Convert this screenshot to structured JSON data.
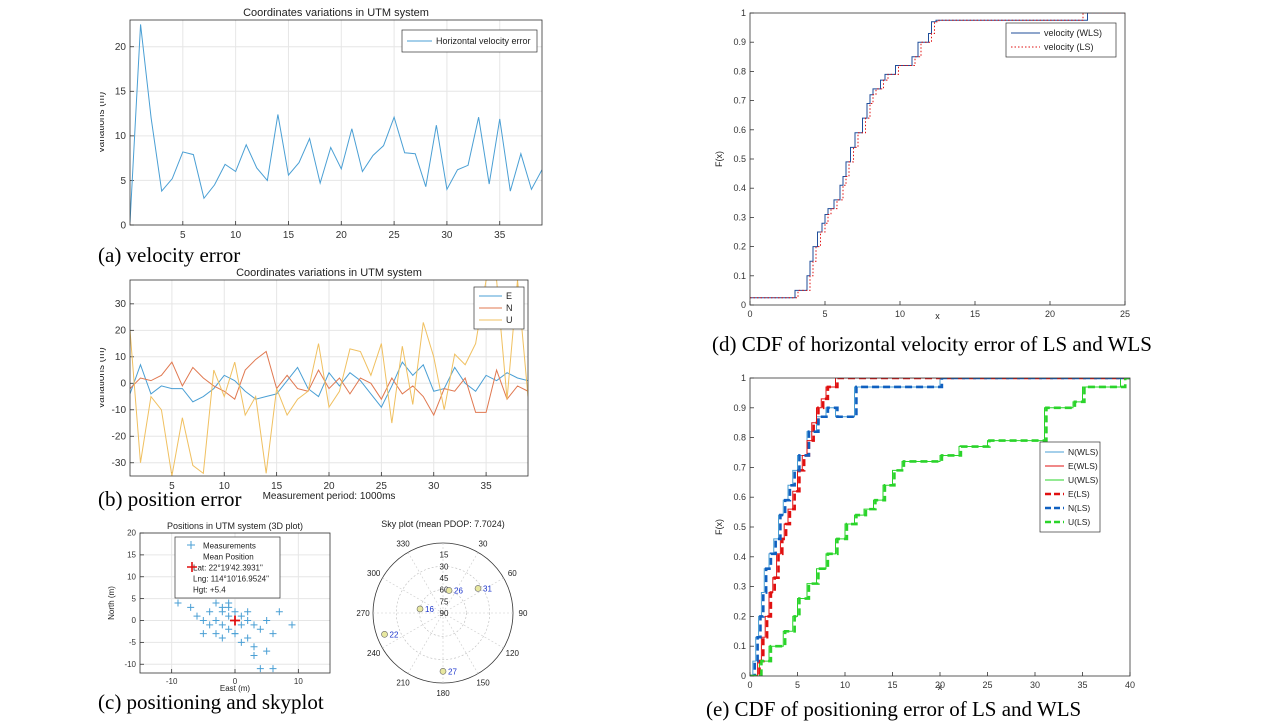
{
  "captions": {
    "a": "(a) velocity error",
    "b": "(b) position error",
    "c": "(c) positioning and skyplot",
    "d": "(d) CDF of  horizontal velocity error of LS and WLS",
    "e": "(e) CDF of positioning error of LS and WLS"
  },
  "chart_data": [
    {
      "id": "a",
      "type": "line",
      "title": "Coordinates variations in UTM system",
      "xlabel": "",
      "ylabel": "Variations (m)",
      "xlim": [
        0,
        39
      ],
      "ylim": [
        0,
        23
      ],
      "xticks": [
        5,
        10,
        15,
        20,
        25,
        30,
        35
      ],
      "yticks": [
        0,
        5,
        10,
        15,
        20
      ],
      "legend": "top-right",
      "series": [
        {
          "name": "Horizontal velocity error",
          "color": "#4a9fd4",
          "x": [
            0,
            1,
            2,
            3,
            4,
            5,
            6,
            7,
            8,
            9,
            10,
            11,
            12,
            13,
            14,
            15,
            16,
            17,
            18,
            19,
            20,
            21,
            22,
            23,
            24,
            25,
            26,
            27,
            28,
            29,
            30,
            31,
            32,
            33,
            34,
            35,
            36,
            37,
            38,
            39
          ],
          "values": [
            0.3,
            22.5,
            12,
            3.8,
            5.2,
            8.2,
            7.9,
            3.0,
            4.5,
            6.8,
            6.0,
            9.0,
            6.4,
            5.0,
            12.4,
            5.6,
            7.0,
            9.7,
            4.7,
            8.7,
            6.3,
            10.8,
            6.0,
            7.8,
            8.9,
            12.1,
            8.1,
            8.0,
            4.3,
            11.2,
            4.0,
            6.2,
            6.7,
            12.1,
            4.6,
            11.9,
            3.8,
            8.0,
            4.0,
            6.2
          ]
        }
      ]
    },
    {
      "id": "b",
      "type": "line",
      "title": "Coordinates variations in UTM system",
      "xlabel": "Measurement period: 1000ms",
      "ylabel": "Variations (m)",
      "xlim": [
        1,
        39
      ],
      "ylim": [
        -35,
        39
      ],
      "xticks": [
        5,
        10,
        15,
        20,
        25,
        30,
        35
      ],
      "yticks": [
        -30,
        -20,
        -10,
        0,
        10,
        20,
        30
      ],
      "legend": "top-right",
      "series": [
        {
          "name": "E",
          "color": "#4a9fd4",
          "x": [
            1,
            2,
            3,
            4,
            5,
            6,
            7,
            8,
            9,
            10,
            11,
            12,
            13,
            14,
            15,
            16,
            17,
            18,
            19,
            20,
            21,
            22,
            23,
            24,
            25,
            26,
            27,
            28,
            29,
            30,
            31,
            32,
            33,
            34,
            35,
            36,
            37,
            38,
            39
          ],
          "values": [
            -4,
            7,
            -4,
            -1,
            -2,
            -2,
            -7,
            -5,
            -2,
            3,
            1,
            -3,
            -6,
            -5,
            -4,
            1,
            6,
            -2,
            -5,
            4,
            -1,
            4,
            1,
            -4,
            -9,
            -1,
            8,
            3,
            7,
            -3,
            -2,
            6,
            0,
            -3,
            3,
            1,
            4,
            2,
            1
          ]
        },
        {
          "name": "N",
          "color": "#e07850",
          "x": [
            1,
            2,
            3,
            4,
            5,
            6,
            7,
            8,
            9,
            10,
            11,
            12,
            13,
            14,
            15,
            16,
            17,
            18,
            19,
            20,
            21,
            22,
            23,
            24,
            25,
            26,
            27,
            28,
            29,
            30,
            31,
            32,
            33,
            34,
            35,
            36,
            37,
            38,
            39
          ],
          "values": [
            -2,
            2,
            1,
            3,
            8,
            -1,
            6,
            2,
            -1,
            -3,
            -6,
            5,
            9,
            12,
            -2,
            3,
            -2,
            -3,
            5,
            -2,
            2,
            -4,
            2,
            0,
            -6,
            2,
            -4,
            -1,
            -5,
            -12,
            -2,
            -3,
            2,
            -11,
            -11,
            5,
            -6,
            -1,
            -3
          ]
        },
        {
          "name": "U",
          "color": "#f0c060",
          "x": [
            1,
            2,
            3,
            4,
            5,
            6,
            7,
            8,
            9,
            10,
            11,
            12,
            13,
            14,
            15,
            16,
            17,
            18,
            19,
            20,
            21,
            22,
            23,
            24,
            25,
            26,
            27,
            28,
            29,
            30,
            31,
            32,
            33,
            34,
            35,
            36,
            37,
            38,
            39
          ],
          "values": [
            20,
            -30,
            -5,
            -10,
            -35,
            -13,
            -31,
            -34,
            5,
            -5,
            8,
            -12,
            -5,
            -34,
            -2,
            -12,
            -6,
            -3,
            15,
            -9,
            -3,
            13,
            12,
            3,
            15,
            -15,
            14,
            -8,
            23,
            10,
            -10,
            11,
            7,
            15,
            39,
            39,
            -6,
            39,
            -5
          ]
        }
      ]
    },
    {
      "id": "c1",
      "type": "scatter",
      "title": "Positions in UTM system (3D plot)",
      "xlabel": "East (m)",
      "ylabel": "North (m)",
      "xlim": [
        -15,
        15
      ],
      "ylim": [
        -12,
        20
      ],
      "xticks": [
        -10,
        0,
        10
      ],
      "yticks": [
        -10,
        -5,
        0,
        5,
        10,
        15,
        20
      ],
      "legend": "top-left",
      "legend_entries": [
        "Measurements",
        "Mean Position",
        "Lat: 22°19'42.3931\"",
        "Lng: 114°10'16.9524\"",
        "Hgt: +5.4"
      ],
      "series": [
        {
          "name": "Measurements",
          "color": "#4a9fd4",
          "x": [
            -9,
            -7,
            -6,
            -5,
            -5,
            -4,
            -4,
            -3,
            -3,
            -3,
            -2,
            -2,
            -2,
            -1,
            -1,
            -1,
            0,
            0,
            0,
            1,
            1,
            1,
            2,
            2,
            2,
            3,
            3,
            3,
            4,
            4,
            5,
            5,
            5,
            6,
            6,
            7,
            9,
            -2,
            -1,
            0
          ],
          "y": [
            4,
            3,
            1,
            0,
            -3,
            2,
            -1,
            4,
            0,
            -3,
            2,
            -1,
            -4,
            1,
            3,
            -2,
            0,
            -3,
            2,
            1,
            -1,
            -5,
            2,
            0,
            -4,
            -1,
            -6,
            -8,
            -2,
            -11,
            -7,
            0,
            -13,
            -3,
            -11,
            2,
            -1,
            3,
            4,
            -3
          ]
        },
        {
          "name": "Mean Position",
          "color": "#e01010",
          "x": [
            0
          ],
          "y": [
            0
          ]
        }
      ]
    },
    {
      "id": "c2",
      "type": "polar",
      "title": "Sky plot (mean PDOP: 7.7024)",
      "angle_ticks": [
        "0",
        "30",
        "60",
        "90",
        "120",
        "150",
        "180",
        "210",
        "240",
        "270",
        "300",
        "330"
      ],
      "elevation_ticks": [
        "0",
        "15",
        "30",
        "45",
        "60",
        "75",
        "90"
      ],
      "satellites": [
        {
          "prn": "26",
          "azimuth": 15,
          "elevation": 60
        },
        {
          "prn": "31",
          "azimuth": 55,
          "elevation": 35
        },
        {
          "prn": "16",
          "azimuth": 280,
          "elevation": 60
        },
        {
          "prn": "22",
          "azimuth": 250,
          "elevation": 10
        },
        {
          "prn": "27",
          "azimuth": 180,
          "elevation": 15
        }
      ]
    },
    {
      "id": "d",
      "type": "step",
      "title": "",
      "xlabel": "x",
      "ylabel": "F(x)",
      "xlim": [
        0,
        25
      ],
      "ylim": [
        0,
        1
      ],
      "xticks": [
        0,
        5,
        10,
        15,
        20,
        25
      ],
      "yticks": [
        0,
        0.1,
        0.2,
        0.3,
        0.4,
        0.5,
        0.6,
        0.7,
        0.8,
        0.9,
        1
      ],
      "legend": "top-right",
      "series": [
        {
          "name": "velocity (WLS)",
          "color": "#1f4e9a",
          "dash": "solid",
          "x": [
            0,
            3.0,
            3.8,
            4.0,
            4.2,
            4.5,
            4.8,
            5.0,
            5.2,
            5.6,
            6.0,
            6.2,
            6.4,
            6.7,
            7.0,
            7.5,
            7.8,
            8.0,
            8.2,
            8.7,
            9.0,
            9.7,
            10.8,
            11.2,
            11.9,
            12.1,
            12.4,
            22.5
          ],
          "values": [
            0.025,
            0.05,
            0.1,
            0.15,
            0.2,
            0.25,
            0.28,
            0.31,
            0.33,
            0.36,
            0.41,
            0.44,
            0.49,
            0.54,
            0.59,
            0.64,
            0.69,
            0.72,
            0.74,
            0.77,
            0.79,
            0.82,
            0.85,
            0.9,
            0.93,
            0.97,
            0.975,
            1.0
          ]
        },
        {
          "name": "velocity (LS)",
          "color": "#e01010",
          "dash": "dotted",
          "x": [
            0,
            3.2,
            4.0,
            4.2,
            4.4,
            4.7,
            5.0,
            5.2,
            5.4,
            5.8,
            6.2,
            6.4,
            6.6,
            6.9,
            7.2,
            7.7,
            8.0,
            8.2,
            8.4,
            8.9,
            9.2,
            9.9,
            11.0,
            11.4,
            12.1,
            12.3,
            12.6,
            22.2
          ],
          "values": [
            0.025,
            0.05,
            0.1,
            0.15,
            0.2,
            0.25,
            0.28,
            0.31,
            0.33,
            0.36,
            0.41,
            0.44,
            0.49,
            0.54,
            0.59,
            0.64,
            0.69,
            0.72,
            0.74,
            0.77,
            0.79,
            0.82,
            0.85,
            0.9,
            0.93,
            0.97,
            0.975,
            1.0
          ]
        }
      ]
    },
    {
      "id": "e",
      "type": "step",
      "title": "",
      "xlabel": "x",
      "ylabel": "F(x)",
      "xlim": [
        0,
        40
      ],
      "ylim": [
        0,
        1
      ],
      "xticks": [
        0,
        5,
        10,
        15,
        20,
        25,
        30,
        35,
        40
      ],
      "yticks": [
        0,
        0.1,
        0.2,
        0.3,
        0.4,
        0.5,
        0.6,
        0.7,
        0.8,
        0.9,
        1
      ],
      "legend": "right",
      "series": [
        {
          "name": "N(WLS)",
          "color": "#4a9fd4",
          "dash": "solid",
          "x": [
            0,
            0.3,
            0.6,
            0.9,
            1.2,
            1.5,
            2.0,
            2.5,
            3.0,
            3.5,
            4.0,
            4.5,
            5.0,
            6.0,
            7.0,
            8.0,
            9.0,
            11.0,
            12.0,
            20.0
          ],
          "values": [
            0.0,
            0.05,
            0.13,
            0.2,
            0.28,
            0.36,
            0.41,
            0.46,
            0.54,
            0.59,
            0.64,
            0.69,
            0.74,
            0.82,
            0.87,
            0.9,
            0.87,
            0.97,
            0.97,
            1.0
          ]
        },
        {
          "name": "E(WLS)",
          "color": "#e01010",
          "dash": "solid",
          "x": [
            0,
            0.8,
            1.2,
            1.6,
            2.0,
            2.4,
            2.8,
            3.2,
            3.6,
            4.0,
            4.5,
            5.0,
            5.5,
            6.0,
            6.5,
            7.0,
            7.5,
            8.0,
            9.0
          ],
          "values": [
            0.0,
            0.05,
            0.13,
            0.2,
            0.28,
            0.33,
            0.41,
            0.46,
            0.51,
            0.56,
            0.62,
            0.69,
            0.74,
            0.79,
            0.85,
            0.9,
            0.93,
            0.97,
            1.0
          ]
        },
        {
          "name": "U(WLS)",
          "color": "#2ad42a",
          "dash": "solid",
          "x": [
            0,
            1.0,
            2.0,
            3.5,
            4.5,
            5.0,
            6.0,
            7.0,
            8.0,
            9.0,
            10.0,
            11.0,
            12.0,
            13.0,
            14.0,
            15.0,
            16.0,
            18.0,
            20.0,
            22.0,
            25.0,
            27.0,
            31.0,
            32.0,
            34.0,
            35.0,
            38.0,
            39.0
          ],
          "values": [
            0.0,
            0.05,
            0.1,
            0.15,
            0.2,
            0.26,
            0.31,
            0.36,
            0.41,
            0.46,
            0.51,
            0.54,
            0.56,
            0.59,
            0.64,
            0.69,
            0.72,
            0.72,
            0.74,
            0.77,
            0.79,
            0.79,
            0.9,
            0.9,
            0.92,
            0.97,
            0.97,
            1.0
          ]
        },
        {
          "name": "E(LS)",
          "color": "#e01010",
          "dash": "dashed",
          "x": [
            0,
            1.0,
            1.4,
            1.8,
            2.2,
            2.6,
            3.0,
            3.4,
            3.8,
            4.2,
            4.7,
            5.2,
            5.7,
            6.2,
            6.7,
            7.2,
            7.7,
            8.2,
            9.2
          ],
          "values": [
            0.0,
            0.05,
            0.13,
            0.2,
            0.28,
            0.33,
            0.41,
            0.46,
            0.51,
            0.56,
            0.62,
            0.69,
            0.74,
            0.79,
            0.85,
            0.9,
            0.93,
            0.97,
            1.0
          ]
        },
        {
          "name": "N(LS)",
          "color": "#1060c0",
          "dash": "dashed",
          "x": [
            0,
            0.5,
            0.8,
            1.1,
            1.4,
            1.7,
            2.2,
            2.7,
            3.2,
            3.7,
            4.2,
            4.7,
            5.2,
            6.2,
            7.2,
            8.2,
            9.2,
            11.2,
            12.2,
            20.2
          ],
          "values": [
            0.0,
            0.05,
            0.13,
            0.2,
            0.28,
            0.36,
            0.41,
            0.46,
            0.54,
            0.59,
            0.64,
            0.69,
            0.74,
            0.82,
            0.87,
            0.9,
            0.87,
            0.97,
            0.97,
            1.0
          ]
        },
        {
          "name": "U(LS)",
          "color": "#2ad42a",
          "dash": "dashed",
          "x": [
            0,
            1.2,
            2.2,
            3.7,
            4.7,
            5.2,
            6.2,
            7.2,
            8.2,
            9.2,
            10.2,
            11.2,
            12.2,
            13.2,
            14.2,
            15.2,
            16.2,
            18.2,
            20.2,
            22.2,
            25.2,
            27.2,
            31.2,
            32.2,
            34.2,
            35.2,
            38.2,
            39.5
          ],
          "values": [
            0.0,
            0.05,
            0.1,
            0.15,
            0.2,
            0.26,
            0.31,
            0.36,
            0.41,
            0.46,
            0.51,
            0.54,
            0.56,
            0.59,
            0.64,
            0.69,
            0.72,
            0.72,
            0.74,
            0.77,
            0.79,
            0.79,
            0.9,
            0.9,
            0.92,
            0.97,
            0.97,
            1.0
          ]
        }
      ]
    }
  ]
}
